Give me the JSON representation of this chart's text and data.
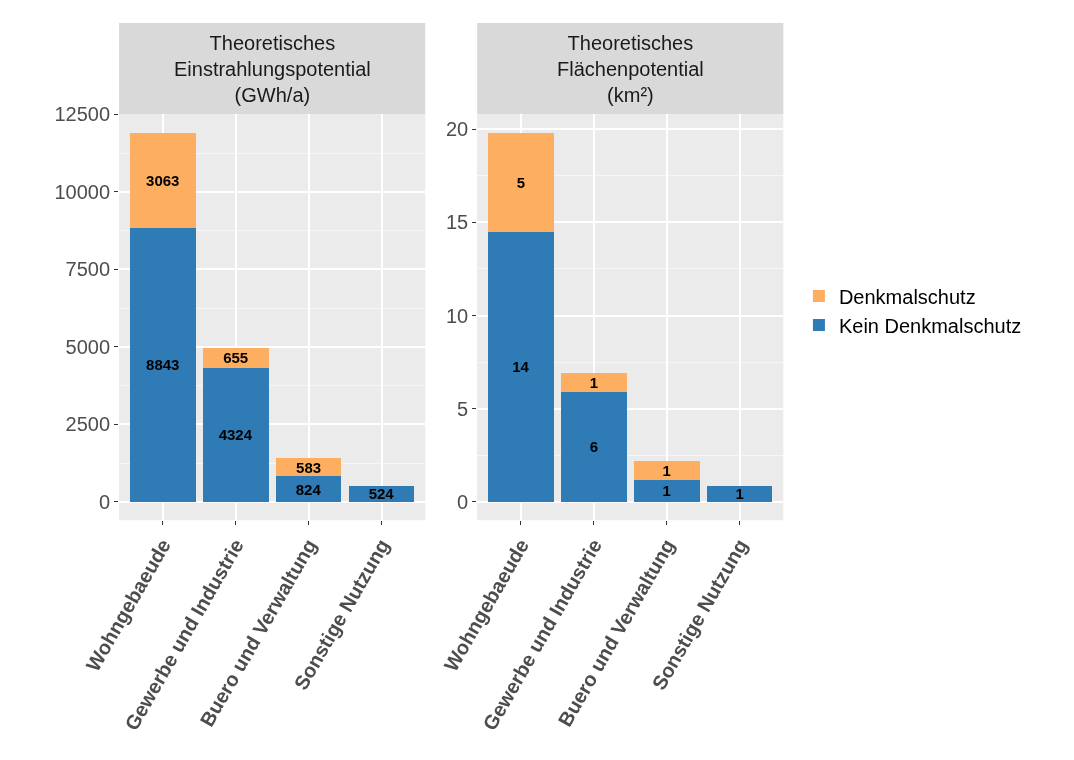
{
  "chart_data": [
    {
      "type": "bar",
      "title": "Theoretisches\nEinstrahlungspotential\n(GWh/a)",
      "stacked": true,
      "categories": [
        "Wohngebaeude",
        "Gewerbe und Industrie",
        "Buero und Verwaltung",
        "Sonstige Nutzung"
      ],
      "series": [
        {
          "name": "Kein Denkmalschutz",
          "color": "#2e7bb6",
          "values": [
            8843,
            4324,
            824,
            524
          ],
          "value_labels": [
            "8843",
            "4324",
            "824",
            "524"
          ]
        },
        {
          "name": "Denkmalschutz",
          "color": "#fdae61",
          "values": [
            3063,
            655,
            583,
            null
          ],
          "value_labels": [
            "3063",
            "655",
            "583",
            null
          ]
        }
      ],
      "ylim": [
        -595,
        12500
      ],
      "yticks": [
        0,
        2500,
        5000,
        7500,
        10000,
        12500
      ],
      "grid": true,
      "legend": "right"
    },
    {
      "type": "bar",
      "title": "Theoretisches\nFlächenpotential\n(km²)",
      "stacked": true,
      "categories": [
        "Wohngebaeude",
        "Gewerbe und Industrie",
        "Buero und Verwaltung",
        "Sonstige Nutzung"
      ],
      "series": [
        {
          "name": "Kein Denkmalschutz",
          "color": "#2e7bb6",
          "values": [
            14.5,
            5.9,
            1.2,
            0.85
          ],
          "value_labels": [
            "14",
            "6",
            "1",
            "1"
          ]
        },
        {
          "name": "Denkmalschutz",
          "color": "#fdae61",
          "values": [
            5.3,
            1.0,
            1.0,
            null
          ],
          "value_labels": [
            "5",
            "1",
            "1",
            null
          ]
        }
      ],
      "ylim": [
        -0.99,
        20.8
      ],
      "yticks": [
        0,
        5,
        10,
        15,
        20
      ],
      "grid": true,
      "legend": "right"
    }
  ]
}
